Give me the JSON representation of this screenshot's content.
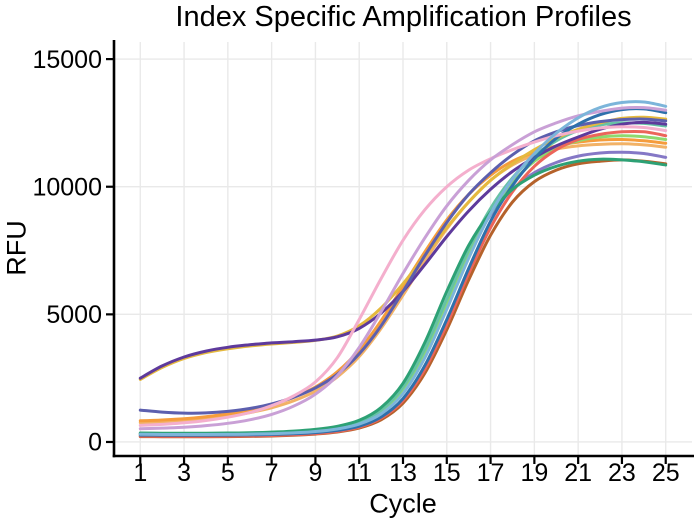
{
  "chart_data": {
    "type": "line",
    "title": "Index Specific Amplification Profiles",
    "xlabel": "Cycle",
    "ylabel": "RFU",
    "legend": "none",
    "grid": "major-only",
    "grid_color": "#e9e9e9",
    "axis_color": "#000000",
    "background_color": "#ffffff",
    "x_ticks": [
      1,
      3,
      5,
      7,
      9,
      11,
      13,
      15,
      17,
      19,
      21,
      23,
      25
    ],
    "y_ticks": [
      0,
      5000,
      10000,
      15000
    ],
    "xlim": [
      -0.2,
      26.2
    ],
    "ylim": [
      -510,
      15670
    ],
    "x": [
      1,
      2,
      3,
      4,
      5,
      6,
      7,
      8,
      9,
      10,
      11,
      12,
      13,
      14,
      15,
      16,
      17,
      18,
      19,
      20,
      21,
      22,
      23,
      24,
      25
    ],
    "series": [
      {
        "name": "sienna",
        "color": "#b5622b",
        "values": [
          210,
          207,
          205,
          206,
          211,
          220,
          236,
          263,
          310,
          390,
          545,
          870,
          1520,
          2700,
          4400,
          6350,
          8100,
          9400,
          10200,
          10650,
          10900,
          11000,
          11050,
          11000,
          10900
        ]
      },
      {
        "name": "medium-purple",
        "color": "#8578c6",
        "values": [
          320,
          315,
          312,
          313,
          319,
          330,
          350,
          385,
          445,
          555,
          770,
          1220,
          2100,
          3600,
          5500,
          7400,
          8900,
          9900,
          10550,
          10950,
          11200,
          11320,
          11350,
          11300,
          11150
        ]
      },
      {
        "name": "sandy-brown",
        "color": "#f2b266",
        "values": [
          760,
          790,
          840,
          910,
          1010,
          1150,
          1340,
          1610,
          1990,
          2550,
          3350,
          4450,
          5750,
          7100,
          8350,
          9400,
          10250,
          10850,
          11250,
          11480,
          11600,
          11660,
          11680,
          11640,
          11550
        ]
      },
      {
        "name": "orange",
        "color": "#f59c3c",
        "values": [
          830,
          860,
          910,
          990,
          1100,
          1250,
          1460,
          1750,
          2150,
          2750,
          3600,
          4750,
          6100,
          7450,
          8700,
          9700,
          10450,
          11000,
          11350,
          11600,
          11750,
          11830,
          11850,
          11800,
          11700
        ]
      },
      {
        "name": "light-green",
        "color": "#8ed96e",
        "values": [
          310,
          306,
          303,
          303,
          309,
          320,
          340,
          374,
          430,
          535,
          740,
          1170,
          2000,
          3450,
          5350,
          7300,
          8950,
          10150,
          11000,
          11500,
          11800,
          11950,
          12000,
          11960,
          11850
        ]
      },
      {
        "name": "salmon",
        "color": "#ec655a",
        "values": [
          230,
          226,
          223,
          224,
          229,
          238,
          254,
          282,
          330,
          415,
          580,
          930,
          1620,
          2850,
          4600,
          6600,
          8400,
          9800,
          10800,
          11450,
          11850,
          12050,
          12150,
          12150,
          12000
        ]
      },
      {
        "name": "teal",
        "color": "#66c2a5",
        "values": [
          330,
          326,
          323,
          324,
          330,
          342,
          362,
          398,
          458,
          570,
          790,
          1250,
          2150,
          3650,
          5600,
          7550,
          9150,
          10350,
          11200,
          11800,
          12200,
          12420,
          12500,
          12480,
          12380
        ]
      },
      {
        "name": "gold",
        "color": "#e5b93e",
        "values": [
          2450,
          2920,
          3270,
          3500,
          3650,
          3760,
          3840,
          3900,
          3980,
          4150,
          4550,
          5250,
          6200,
          7300,
          8400,
          9400,
          10250,
          10900,
          11450,
          11900,
          12250,
          12500,
          12680,
          12720,
          12650
        ]
      },
      {
        "name": "dark-purple",
        "color": "#5e3a9c",
        "values": [
          2500,
          2980,
          3330,
          3560,
          3710,
          3810,
          3880,
          3930,
          3990,
          4120,
          4450,
          5050,
          5900,
          6950,
          8050,
          9050,
          9900,
          10600,
          11150,
          11600,
          11950,
          12250,
          12450,
          12520,
          12450
        ]
      },
      {
        "name": "slate-blue",
        "color": "#5c5fae",
        "values": [
          1250,
          1170,
          1130,
          1140,
          1200,
          1310,
          1490,
          1750,
          2120,
          2650,
          3450,
          4550,
          5900,
          7300,
          8600,
          9700,
          10550,
          11250,
          11800,
          12150,
          12400,
          12550,
          12630,
          12650,
          12580
        ]
      },
      {
        "name": "steel-blue",
        "color": "#2e70ab",
        "values": [
          270,
          266,
          263,
          263,
          268,
          277,
          293,
          320,
          368,
          455,
          620,
          980,
          1700,
          3000,
          4800,
          6800,
          8650,
          10050,
          11100,
          11900,
          12450,
          12820,
          13020,
          13050,
          12900
        ]
      },
      {
        "name": "sea-green",
        "color": "#2da175",
        "values": [
          350,
          345,
          342,
          343,
          350,
          363,
          386,
          426,
          492,
          615,
          850,
          1350,
          2300,
          3900,
          5900,
          7700,
          9000,
          9900,
          10450,
          10800,
          11000,
          11080,
          11050,
          10980,
          10850
        ]
      },
      {
        "name": "pink",
        "color": "#f4afcd",
        "values": [
          650,
          690,
          750,
          840,
          970,
          1150,
          1420,
          1800,
          2350,
          3300,
          4800,
          6400,
          7900,
          9100,
          10000,
          10650,
          11100,
          11450,
          11750,
          12000,
          12180,
          12300,
          12350,
          12320,
          12200
        ]
      },
      {
        "name": "plum",
        "color": "#c9a0d6",
        "values": [
          520,
          545,
          580,
          640,
          730,
          870,
          1080,
          1400,
          1870,
          2600,
          3700,
          5100,
          6600,
          8000,
          9250,
          10250,
          11050,
          11650,
          12150,
          12500,
          12780,
          12950,
          13080,
          13100,
          13000
        ]
      },
      {
        "name": "sky-blue",
        "color": "#7cb5da",
        "values": [
          300,
          295,
          292,
          292,
          297,
          307,
          325,
          357,
          410,
          510,
          700,
          1100,
          1900,
          3300,
          5200,
          7200,
          8950,
          10300,
          11300,
          12100,
          12700,
          13100,
          13300,
          13320,
          13150
        ]
      }
    ]
  }
}
